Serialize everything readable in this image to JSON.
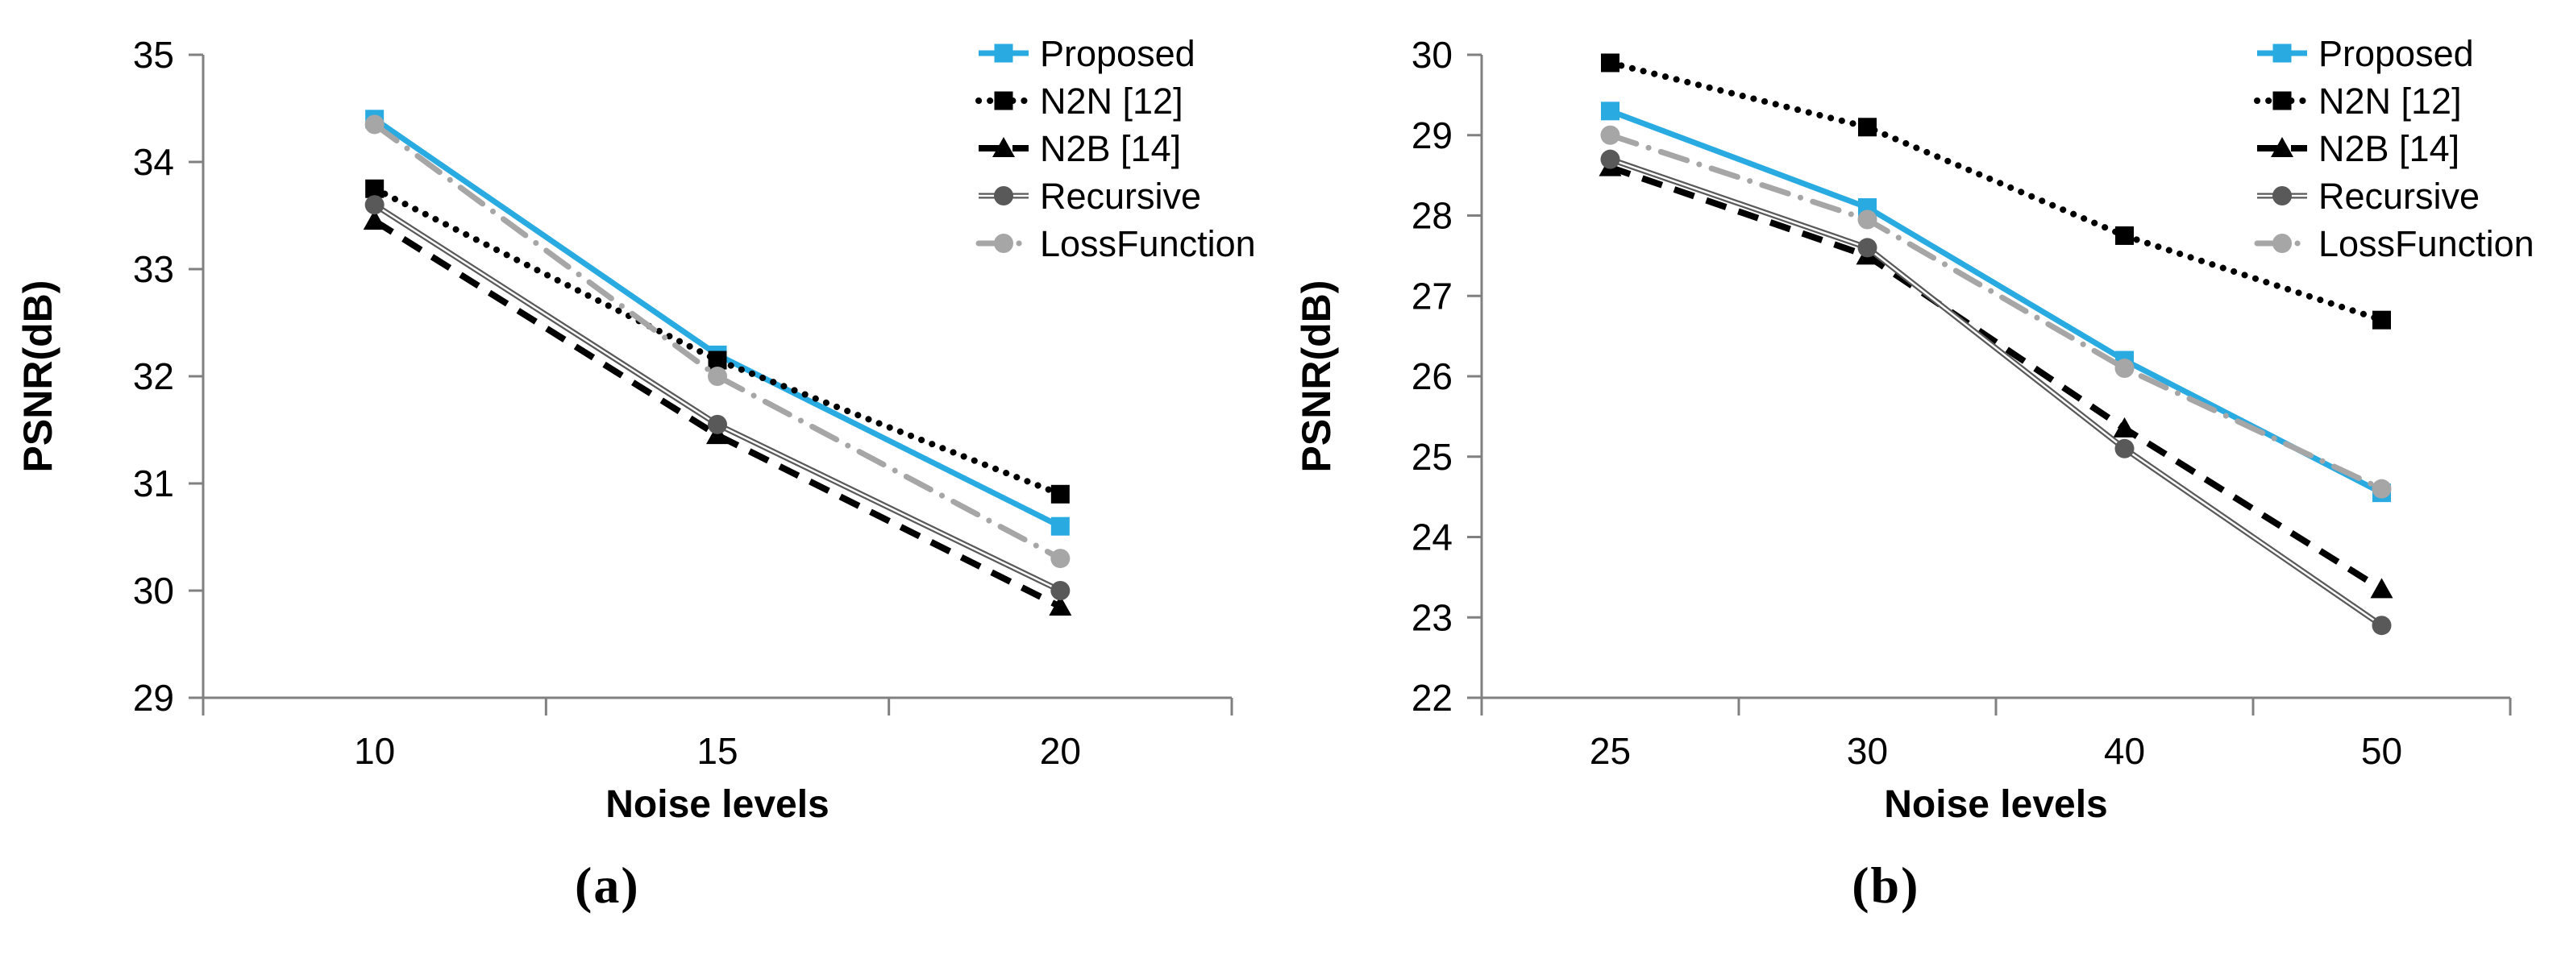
{
  "figure": {
    "background": "#ffffff"
  },
  "colors": {
    "axis_line": "#808080",
    "text": "#000000",
    "proposed_cyan": "#29abe2",
    "n2n_black": "#000000",
    "n2b_black": "#000000",
    "recursive_gray": "#595959",
    "lossfunction_gray": "#a6a6a6",
    "double_line_core": "#ffffff"
  },
  "chart_data": [
    {
      "type": "line",
      "panel_label": "(a)",
      "title": "",
      "xlabel": "Noise levels",
      "ylabel": "PSNR(dB)",
      "categories": [
        "10",
        "15",
        "20"
      ],
      "ylim": [
        29,
        35
      ],
      "ytick_step": 1,
      "ytick_labels": [
        "29",
        "30",
        "31",
        "32",
        "33",
        "34",
        "35"
      ],
      "grid": false,
      "legend_position": "top-right",
      "series": [
        {
          "name": "Proposed",
          "values": [
            34.4,
            32.2,
            30.6
          ],
          "color": "#29abe2",
          "line": "solid",
          "marker": "square"
        },
        {
          "name": "N2N [12]",
          "values": [
            33.75,
            32.15,
            30.9
          ],
          "color": "#000000",
          "line": "dotted",
          "marker": "square"
        },
        {
          "name": "N2B [14]",
          "values": [
            33.45,
            31.45,
            29.85
          ],
          "color": "#000000",
          "line": "dashed",
          "marker": "triangle"
        },
        {
          "name": "Recursive",
          "values": [
            33.6,
            31.55,
            30.0
          ],
          "color": "#595959",
          "line": "double",
          "marker": "circle"
        },
        {
          "name": "LossFunction",
          "values": [
            34.35,
            32.0,
            30.3
          ],
          "color": "#a6a6a6",
          "line": "dashdot",
          "marker": "circle"
        }
      ]
    },
    {
      "type": "line",
      "panel_label": "(b)",
      "title": "",
      "xlabel": "Noise levels",
      "ylabel": "PSNR(dB)",
      "categories": [
        "25",
        "30",
        "40",
        "50"
      ],
      "ylim": [
        22,
        30
      ],
      "ytick_step": 1,
      "ytick_labels": [
        "22",
        "23",
        "24",
        "25",
        "26",
        "27",
        "28",
        "29",
        "30"
      ],
      "grid": false,
      "legend_position": "top-right",
      "series": [
        {
          "name": "Proposed",
          "values": [
            29.3,
            28.1,
            26.2,
            24.55
          ],
          "color": "#29abe2",
          "line": "solid",
          "marker": "square"
        },
        {
          "name": "N2N [12]",
          "values": [
            29.9,
            29.1,
            27.75,
            26.7
          ],
          "color": "#000000",
          "line": "dotted",
          "marker": "square"
        },
        {
          "name": "N2B [14]",
          "values": [
            28.6,
            27.5,
            25.35,
            23.35
          ],
          "color": "#000000",
          "line": "dashed",
          "marker": "triangle"
        },
        {
          "name": "Recursive",
          "values": [
            28.7,
            27.6,
            25.1,
            22.9
          ],
          "color": "#595959",
          "line": "double",
          "marker": "circle"
        },
        {
          "name": "LossFunction",
          "values": [
            29.0,
            27.95,
            26.1,
            24.6
          ],
          "color": "#a6a6a6",
          "line": "dashdot",
          "marker": "circle"
        }
      ]
    }
  ]
}
